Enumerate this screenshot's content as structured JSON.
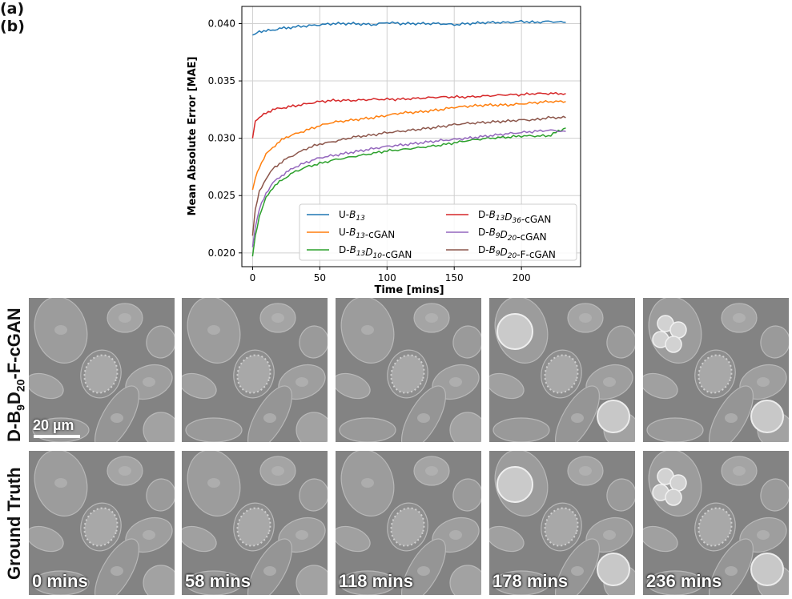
{
  "panel_a_label": "(a)",
  "panel_b_label": "(b)",
  "chart_data": {
    "type": "line",
    "xlabel": "Time [mins]",
    "ylabel": "Mean Absolute Error [MAE]",
    "xlim": [
      -8,
      244
    ],
    "ylim": [
      0.0188,
      0.0415
    ],
    "xticks": [
      0,
      50,
      100,
      150,
      200
    ],
    "yticks": [
      0.02,
      0.025,
      0.03,
      0.035,
      0.04
    ],
    "ytick_labels": [
      "0.020",
      "0.025",
      "0.030",
      "0.035",
      "0.040"
    ],
    "grid": true,
    "legend": {
      "placement": "lower-right",
      "columns": 2
    },
    "series": [
      {
        "name_prefix": "U-",
        "name_tex": [
          [
            "B",
            "13",
            ""
          ]
        ],
        "name_suffix": "",
        "color": "#1f77b4",
        "x": [
          0,
          2,
          5,
          10,
          15,
          20,
          25,
          30,
          40,
          50,
          60,
          75,
          90,
          100,
          110,
          125,
          140,
          150,
          160,
          175,
          190,
          200,
          210,
          220,
          233
        ],
        "y": [
          0.039,
          0.0391,
          0.0393,
          0.0394,
          0.0394,
          0.0396,
          0.0396,
          0.0397,
          0.0398,
          0.0399,
          0.04,
          0.04,
          0.0399,
          0.0401,
          0.04,
          0.04,
          0.04,
          0.0399,
          0.04,
          0.0401,
          0.0401,
          0.0402,
          0.0401,
          0.0402,
          0.0401
        ]
      },
      {
        "name_prefix": "U-",
        "name_tex": [
          [
            "B",
            "13",
            ""
          ]
        ],
        "name_suffix": "-cGAN",
        "color": "#ff7f0e",
        "x": [
          0,
          2,
          5,
          10,
          15,
          20,
          25,
          30,
          40,
          50,
          60,
          75,
          90,
          100,
          110,
          125,
          140,
          150,
          160,
          175,
          190,
          200,
          210,
          220,
          233
        ],
        "y": [
          0.0255,
          0.0265,
          0.0275,
          0.0286,
          0.0292,
          0.0297,
          0.0301,
          0.0303,
          0.0307,
          0.0311,
          0.0314,
          0.0316,
          0.0318,
          0.032,
          0.0322,
          0.0323,
          0.0325,
          0.0327,
          0.0328,
          0.0329,
          0.0329,
          0.033,
          0.0331,
          0.0332,
          0.0332
        ]
      },
      {
        "name_prefix": "D-",
        "name_tex": [
          [
            "B",
            "13",
            ""
          ],
          [
            "D",
            "10",
            ""
          ]
        ],
        "name_suffix": "-cGAN",
        "color": "#2ca02c",
        "x": [
          0,
          2,
          5,
          10,
          15,
          20,
          25,
          30,
          40,
          50,
          60,
          75,
          90,
          100,
          110,
          125,
          140,
          150,
          160,
          175,
          190,
          200,
          210,
          220,
          233
        ],
        "y": [
          0.0197,
          0.0215,
          0.0232,
          0.0248,
          0.0257,
          0.0262,
          0.0266,
          0.027,
          0.0275,
          0.0278,
          0.0281,
          0.0284,
          0.0287,
          0.0289,
          0.029,
          0.0292,
          0.0294,
          0.0296,
          0.0298,
          0.03,
          0.0301,
          0.0302,
          0.0302,
          0.0302,
          0.0309
        ]
      },
      {
        "name_prefix": "D-",
        "name_tex": [
          [
            "B",
            "13",
            ""
          ],
          [
            "D",
            "36",
            ""
          ]
        ],
        "name_suffix": "-cGAN",
        "color": "#d62728",
        "x": [
          0,
          2,
          5,
          10,
          15,
          20,
          25,
          30,
          40,
          50,
          60,
          75,
          90,
          100,
          110,
          125,
          140,
          150,
          160,
          175,
          190,
          200,
          210,
          220,
          233
        ],
        "y": [
          0.03,
          0.0315,
          0.0318,
          0.0322,
          0.0325,
          0.0326,
          0.0327,
          0.0328,
          0.033,
          0.0332,
          0.0333,
          0.0333,
          0.0334,
          0.0334,
          0.0334,
          0.0335,
          0.0336,
          0.0336,
          0.0336,
          0.0337,
          0.0338,
          0.0338,
          0.0339,
          0.0339,
          0.0339
        ]
      },
      {
        "name_prefix": "D-",
        "name_tex": [
          [
            "B",
            "9",
            ""
          ],
          [
            "D",
            "20",
            ""
          ]
        ],
        "name_suffix": "-cGAN",
        "color": "#9467bd",
        "x": [
          0,
          2,
          5,
          10,
          15,
          20,
          25,
          30,
          40,
          50,
          60,
          75,
          90,
          100,
          110,
          125,
          140,
          150,
          160,
          175,
          190,
          200,
          210,
          220,
          233
        ],
        "y": [
          0.0205,
          0.0222,
          0.0238,
          0.0252,
          0.0261,
          0.0266,
          0.027,
          0.0274,
          0.0279,
          0.0283,
          0.0285,
          0.0288,
          0.0291,
          0.0293,
          0.0294,
          0.0296,
          0.0298,
          0.0299,
          0.03,
          0.0302,
          0.0304,
          0.0305,
          0.0306,
          0.0307,
          0.0306
        ]
      },
      {
        "name_prefix": "D-",
        "name_tex": [
          [
            "B",
            "9",
            ""
          ],
          [
            "D",
            "20",
            ""
          ]
        ],
        "name_suffix": "-F-cGAN",
        "color": "#8c564b",
        "x": [
          0,
          2,
          5,
          10,
          15,
          20,
          25,
          30,
          40,
          50,
          60,
          75,
          90,
          100,
          110,
          125,
          140,
          150,
          160,
          175,
          190,
          200,
          210,
          220,
          233
        ],
        "y": [
          0.0215,
          0.0238,
          0.0253,
          0.0265,
          0.0273,
          0.0278,
          0.0282,
          0.0285,
          0.0291,
          0.0295,
          0.0297,
          0.0301,
          0.0303,
          0.0305,
          0.0306,
          0.0308,
          0.031,
          0.0312,
          0.0313,
          0.0314,
          0.0315,
          0.0316,
          0.0316,
          0.0318,
          0.0318
        ]
      }
    ]
  },
  "figure_b": {
    "row_labels": {
      "prediction_prefix": "D-B",
      "prediction_sub1": "9",
      "prediction_mid": "D",
      "prediction_sub2": "20",
      "prediction_suffix": "-F-cGAN",
      "ground_truth": "Ground Truth"
    },
    "scale_bar_label": "20 µm",
    "time_labels": [
      "0 mins",
      "58 mins",
      "118 mins",
      "178 mins",
      "236 mins"
    ]
  }
}
